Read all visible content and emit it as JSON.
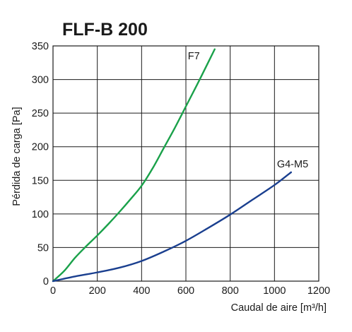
{
  "chart_data": {
    "type": "line",
    "title": "FLF-B 200",
    "xlabel": "Caudal de aire [m³/h]",
    "ylabel": "Pérdida de carga [Pa]",
    "xlim": [
      0,
      1200
    ],
    "ylim": [
      0,
      350
    ],
    "xticks": [
      "0",
      "200",
      "400",
      "600",
      "800",
      "1000",
      "1200"
    ],
    "yticks": [
      "0",
      "50",
      "100",
      "150",
      "200",
      "250",
      "300",
      "350"
    ],
    "grid": true,
    "series": [
      {
        "name": "F7",
        "color": "#1aa14a",
        "x": [
          0,
          50,
          100,
          150,
          200,
          250,
          300,
          350,
          400,
          450,
          500,
          550,
          600,
          650,
          700,
          730
        ],
        "y": [
          0,
          15,
          35,
          52,
          68,
          85,
          103,
          122,
          142,
          168,
          198,
          228,
          260,
          292,
          325,
          345
        ]
      },
      {
        "name": "G4-M5",
        "color": "#1a3f8f",
        "x": [
          0,
          100,
          200,
          300,
          400,
          500,
          600,
          700,
          800,
          900,
          1000,
          1075
        ],
        "y": [
          0,
          7,
          13,
          20,
          30,
          44,
          60,
          79,
          99,
          121,
          143,
          162
        ]
      }
    ]
  }
}
